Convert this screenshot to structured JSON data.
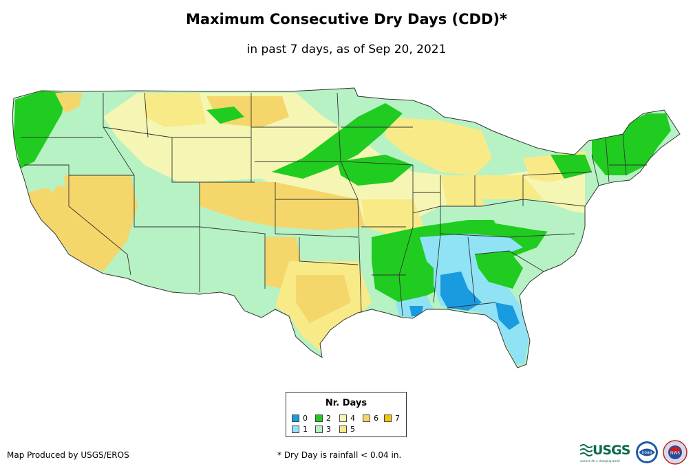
{
  "title": "Maximum Consecutive Dry Days (CDD)*",
  "subtitle": "in past 7 days, as of Sep 20, 2021",
  "legend": {
    "title": "Nr. Days",
    "items": [
      {
        "label": "0",
        "color": "#1a9be0"
      },
      {
        "label": "1",
        "color": "#8fe3f5"
      },
      {
        "label": "2",
        "color": "#1fcc1f"
      },
      {
        "label": "3",
        "color": "#b6f2c4"
      },
      {
        "label": "4",
        "color": "#f6f6b4"
      },
      {
        "label": "5",
        "color": "#f8ea87"
      },
      {
        "label": "6",
        "color": "#f5d66b"
      },
      {
        "label": "7",
        "color": "#f3c600"
      }
    ]
  },
  "credit": "Map Produced by USGS/EROS",
  "footnote": "* Dry Day is rainfall < 0.04 in.",
  "logos": {
    "usgs": "USGS",
    "usgs_tagline": "science for a changing world",
    "noaa": "noaa",
    "nws": "NWS"
  }
}
